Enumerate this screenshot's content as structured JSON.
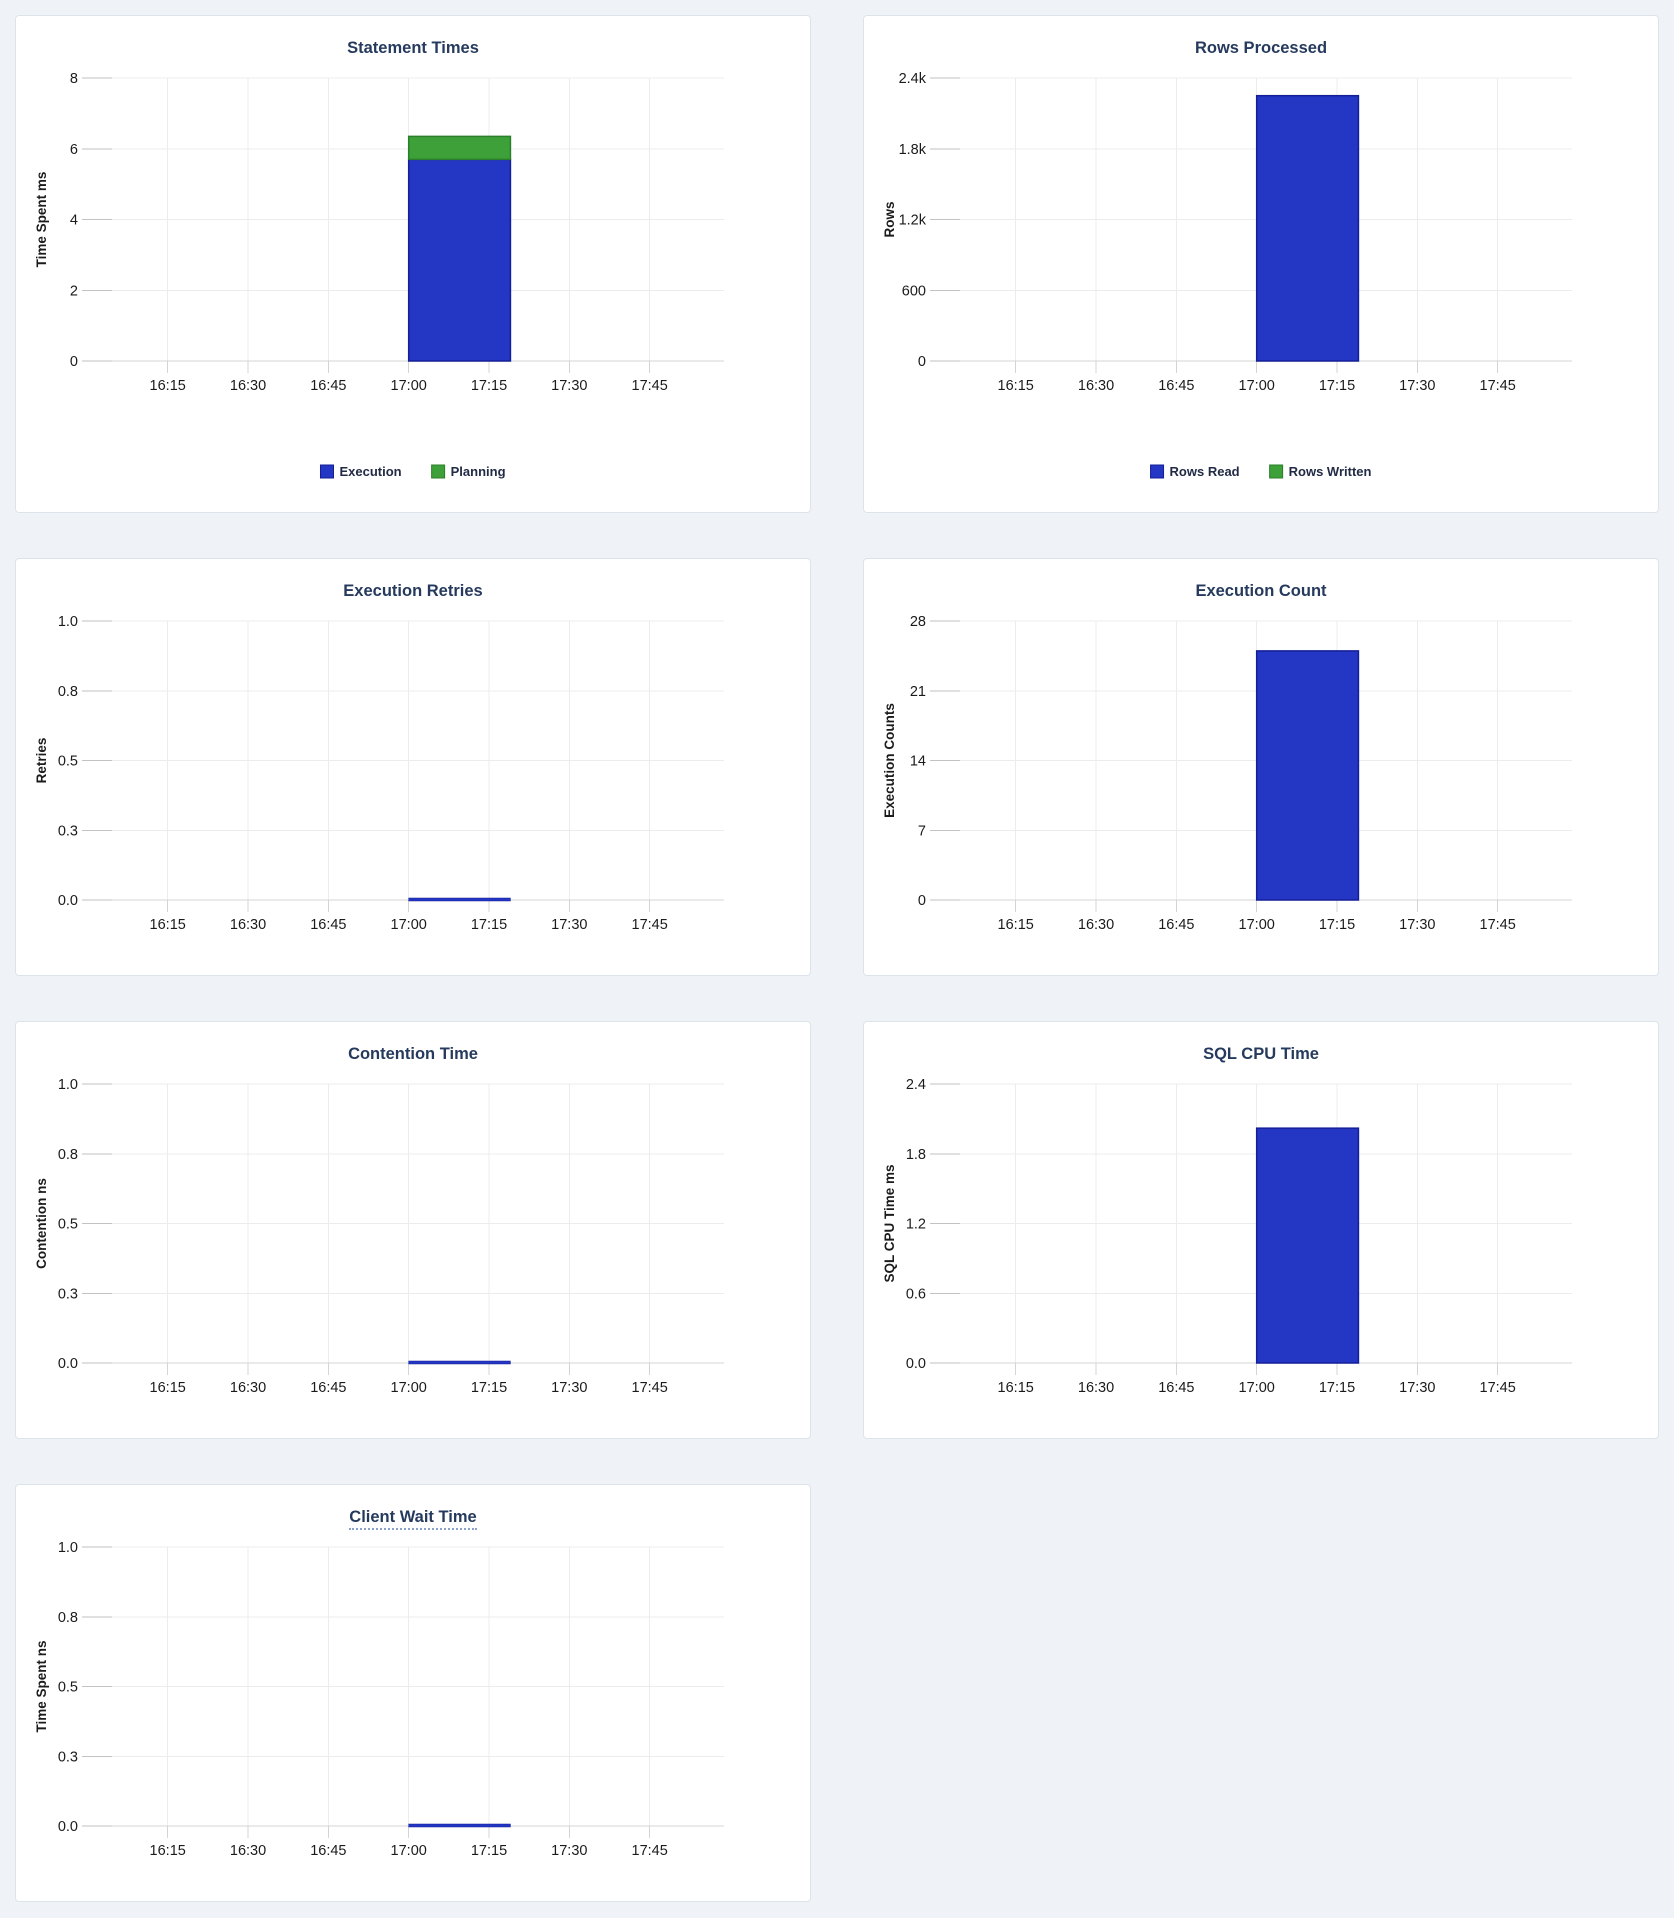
{
  "page": {
    "background": "#eff3f8"
  },
  "colors": {
    "bar_blue_fill": "#2337c4",
    "bar_blue_stroke": "#141e96",
    "bar_green_fill": "#3da039",
    "bar_green_stroke": "#2b7f2b",
    "title_text": "#263a5e",
    "axis_text": "#1b1b1b",
    "legend_text": "#222b45",
    "gridline": "#ececec",
    "axis_line": "#d4d4d4",
    "tick_mark": "#c2c2c2",
    "panel_background": "#ffffff",
    "panel_border": "#dde3ea"
  },
  "x_axis": {
    "tick_labels": [
      "16:15",
      "16:30",
      "16:45",
      "17:00",
      "17:15",
      "17:30",
      "17:45"
    ],
    "tick_positions": [
      0.117,
      0.2445,
      0.372,
      0.4995,
      0.627,
      0.7545,
      0.882
    ],
    "bar_start": 0.4995,
    "bar_end": 0.661
  },
  "chart_data": [
    {
      "type": "bar",
      "title": "Statement Times",
      "ylabel": "Time Spent ms",
      "ylim": [
        0,
        8
      ],
      "ytick_values": [
        0,
        2,
        4,
        6,
        8
      ],
      "ytick_labels": [
        "0",
        "2",
        "4",
        "6",
        "8"
      ],
      "stacked": true,
      "legend": true,
      "grid": true,
      "categories": [
        "17:00-17:19"
      ],
      "series": [
        {
          "name": "Execution",
          "color": "blue",
          "value": 5.7
        },
        {
          "name": "Planning",
          "color": "green",
          "value": 0.65
        }
      ]
    },
    {
      "type": "bar",
      "title": "Rows Processed",
      "ylabel": "Rows",
      "ylim": [
        0,
        2400
      ],
      "ytick_values": [
        0,
        600,
        1200,
        1800,
        2400
      ],
      "ytick_labels": [
        "0",
        "600",
        "1.2k",
        "1.8k",
        "2.4k"
      ],
      "stacked": true,
      "legend": true,
      "grid": true,
      "categories": [
        "17:00-17:19"
      ],
      "series": [
        {
          "name": "Rows Read",
          "color": "blue",
          "value": 2250
        },
        {
          "name": "Rows Written",
          "color": "green",
          "value": 0
        }
      ]
    },
    {
      "type": "bar",
      "title": "Execution Retries",
      "ylabel": "Retries",
      "ylim": [
        0,
        1
      ],
      "ytick_values": [
        0,
        0.25,
        0.5,
        0.75,
        1
      ],
      "ytick_labels": [
        "0.0",
        "0.3",
        "0.5",
        "0.8",
        "1.0"
      ],
      "stacked": false,
      "legend": false,
      "grid": true,
      "categories": [
        "17:00-17:19"
      ],
      "series": [
        {
          "color": "blue",
          "value": 0
        }
      ]
    },
    {
      "type": "bar",
      "title": "Execution Count",
      "ylabel": "Execution Counts",
      "ylim": [
        0,
        28
      ],
      "ytick_values": [
        0,
        7,
        14,
        21,
        28
      ],
      "ytick_labels": [
        "0",
        "7",
        "14",
        "21",
        "28"
      ],
      "stacked": false,
      "legend": false,
      "grid": true,
      "categories": [
        "17:00-17:19"
      ],
      "series": [
        {
          "color": "blue",
          "value": 25
        }
      ]
    },
    {
      "type": "bar",
      "title": "Contention Time",
      "ylabel": "Contention ns",
      "ylim": [
        0,
        1
      ],
      "ytick_values": [
        0,
        0.25,
        0.5,
        0.75,
        1
      ],
      "ytick_labels": [
        "0.0",
        "0.3",
        "0.5",
        "0.8",
        "1.0"
      ],
      "stacked": false,
      "legend": false,
      "grid": true,
      "categories": [
        "17:00-17:19"
      ],
      "series": [
        {
          "color": "blue",
          "value": 0
        }
      ]
    },
    {
      "type": "bar",
      "title": "SQL CPU Time",
      "ylabel": "SQL CPU Time ms",
      "ylim": [
        0,
        2.4
      ],
      "ytick_values": [
        0,
        0.6,
        1.2,
        1.8,
        2.4
      ],
      "ytick_labels": [
        "0.0",
        "0.6",
        "1.2",
        "1.8",
        "2.4"
      ],
      "stacked": false,
      "legend": false,
      "grid": true,
      "categories": [
        "17:00-17:19"
      ],
      "series": [
        {
          "color": "blue",
          "value": 2.02
        }
      ]
    },
    {
      "type": "bar",
      "title": "Client Wait Time",
      "ylabel": "Time Spent ns",
      "ylim": [
        0,
        1
      ],
      "ytick_values": [
        0,
        0.25,
        0.5,
        0.75,
        1
      ],
      "ytick_labels": [
        "0.0",
        "0.3",
        "0.5",
        "0.8",
        "1.0"
      ],
      "stacked": false,
      "legend": false,
      "grid": true,
      "title_tooltip": true,
      "categories": [
        "17:00-17:19"
      ],
      "series": [
        {
          "color": "blue",
          "value": 0
        }
      ]
    }
  ]
}
